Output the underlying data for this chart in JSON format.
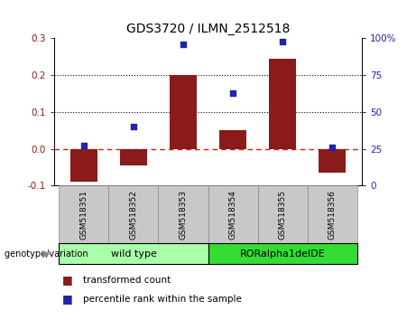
{
  "title": "GDS3720 / ILMN_2512518",
  "categories": [
    "GSM518351",
    "GSM518352",
    "GSM518353",
    "GSM518354",
    "GSM518355",
    "GSM518356"
  ],
  "bar_values": [
    -0.09,
    -0.045,
    0.2,
    0.05,
    0.245,
    -0.065
  ],
  "percentile_values": [
    27,
    40,
    96,
    63,
    98,
    26
  ],
  "ylim_left": [
    -0.1,
    0.3
  ],
  "ylim_right": [
    0,
    100
  ],
  "yticks_left": [
    -0.1,
    0.0,
    0.1,
    0.2,
    0.3
  ],
  "yticks_right": [
    0,
    25,
    50,
    75,
    100
  ],
  "bar_color": "#8B1A1A",
  "scatter_color": "#2222AA",
  "zero_line_color": "#CC2200",
  "dotted_line_color": "#000000",
  "group1_label": "wild type",
  "group2_label": "RORalpha1delDE",
  "group1_indices": [
    0,
    1,
    2
  ],
  "group2_indices": [
    3,
    4,
    5
  ],
  "group1_color": "#AAFFAA",
  "group2_color": "#33DD33",
  "genotype_label": "genotype/variation",
  "legend_bar_label": "transformed count",
  "legend_scatter_label": "percentile rank within the sample",
  "title_fontsize": 10,
  "tick_fontsize": 7.5,
  "label_fontsize": 8
}
